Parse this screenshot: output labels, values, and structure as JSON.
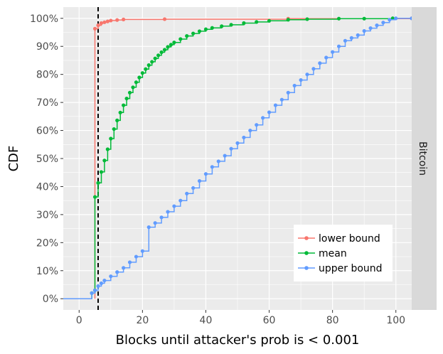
{
  "chart_data": {
    "type": "line",
    "facet_label": "Bitcoin",
    "xlabel": "Blocks until attacker's prob is < 0.001",
    "ylabel": "CDF",
    "xlim": [
      -5,
      105
    ],
    "ylim": [
      -0.04,
      1.04
    ],
    "x_ticks": [
      0,
      20,
      40,
      60,
      80,
      100
    ],
    "y_ticks": [
      0,
      0.1,
      0.2,
      0.3,
      0.4,
      0.5,
      0.6,
      0.7,
      0.8,
      0.9,
      1.0
    ],
    "y_tick_labels": [
      "0%",
      "10%",
      "20%",
      "30%",
      "40%",
      "50%",
      "60%",
      "70%",
      "80%",
      "90%",
      "100%"
    ],
    "vline_x": 6,
    "legend_position": "bottom-right",
    "colors": {
      "panel_bg": "#ebebeb",
      "grid_major": "#ffffff",
      "strip_bg": "#d9d9d9",
      "vline": "#000000"
    },
    "series": [
      {
        "name": "lower bound",
        "color": "#F8766D",
        "points": [
          [
            5,
            0.0
          ],
          [
            5,
            0.963
          ],
          [
            6,
            0.975
          ],
          [
            7,
            0.983
          ],
          [
            8,
            0.986
          ],
          [
            9,
            0.989
          ],
          [
            10,
            0.992
          ],
          [
            12,
            0.994
          ],
          [
            14,
            0.996
          ],
          [
            27,
            0.997
          ],
          [
            66,
            0.999
          ],
          [
            105,
            1.0
          ]
        ]
      },
      {
        "name": "mean",
        "color": "#00BA38",
        "points": [
          [
            4,
            0.0
          ],
          [
            4,
            0.02
          ],
          [
            5,
            0.03
          ],
          [
            5,
            0.363
          ],
          [
            6,
            0.413
          ],
          [
            7,
            0.452
          ],
          [
            8,
            0.493
          ],
          [
            9,
            0.533
          ],
          [
            10,
            0.571
          ],
          [
            11,
            0.605
          ],
          [
            12,
            0.636
          ],
          [
            13,
            0.664
          ],
          [
            14,
            0.69
          ],
          [
            15,
            0.714
          ],
          [
            16,
            0.735
          ],
          [
            17,
            0.754
          ],
          [
            18,
            0.772
          ],
          [
            19,
            0.789
          ],
          [
            20,
            0.805
          ],
          [
            21,
            0.819
          ],
          [
            22,
            0.833
          ],
          [
            23,
            0.845
          ],
          [
            24,
            0.857
          ],
          [
            25,
            0.868
          ],
          [
            26,
            0.879
          ],
          [
            27,
            0.888
          ],
          [
            28,
            0.898
          ],
          [
            29,
            0.906
          ],
          [
            30,
            0.914
          ],
          [
            32,
            0.926
          ],
          [
            34,
            0.937
          ],
          [
            36,
            0.946
          ],
          [
            38,
            0.954
          ],
          [
            40,
            0.961
          ],
          [
            42,
            0.966
          ],
          [
            45,
            0.972
          ],
          [
            48,
            0.977
          ],
          [
            52,
            0.983
          ],
          [
            56,
            0.987
          ],
          [
            60,
            0.991
          ],
          [
            66,
            0.995
          ],
          [
            72,
            0.997
          ],
          [
            82,
            0.999
          ],
          [
            90,
            0.999
          ],
          [
            99,
            1.0
          ]
        ]
      },
      {
        "name": "upper bound",
        "color": "#619CFF",
        "points": [
          [
            -5,
            0.0
          ],
          [
            4,
            0.0
          ],
          [
            4,
            0.02
          ],
          [
            5,
            0.03
          ],
          [
            6,
            0.045
          ],
          [
            7,
            0.055
          ],
          [
            8,
            0.065
          ],
          [
            10,
            0.08
          ],
          [
            12,
            0.095
          ],
          [
            14,
            0.11
          ],
          [
            16,
            0.13
          ],
          [
            18,
            0.15
          ],
          [
            20,
            0.17
          ],
          [
            22,
            0.255
          ],
          [
            24,
            0.27
          ],
          [
            26,
            0.29
          ],
          [
            28,
            0.31
          ],
          [
            30,
            0.33
          ],
          [
            32,
            0.35
          ],
          [
            34,
            0.375
          ],
          [
            36,
            0.395
          ],
          [
            38,
            0.42
          ],
          [
            40,
            0.445
          ],
          [
            42,
            0.47
          ],
          [
            44,
            0.49
          ],
          [
            46,
            0.51
          ],
          [
            48,
            0.535
          ],
          [
            50,
            0.555
          ],
          [
            52,
            0.575
          ],
          [
            54,
            0.6
          ],
          [
            56,
            0.62
          ],
          [
            58,
            0.645
          ],
          [
            60,
            0.665
          ],
          [
            62,
            0.69
          ],
          [
            64,
            0.71
          ],
          [
            66,
            0.735
          ],
          [
            68,
            0.76
          ],
          [
            70,
            0.78
          ],
          [
            72,
            0.8
          ],
          [
            74,
            0.82
          ],
          [
            76,
            0.84
          ],
          [
            78,
            0.86
          ],
          [
            80,
            0.88
          ],
          [
            82,
            0.9
          ],
          [
            84,
            0.92
          ],
          [
            86,
            0.93
          ],
          [
            88,
            0.94
          ],
          [
            90,
            0.955
          ],
          [
            92,
            0.965
          ],
          [
            94,
            0.975
          ],
          [
            96,
            0.985
          ],
          [
            98,
            0.995
          ],
          [
            100,
            1.0
          ],
          [
            105,
            1.0
          ]
        ]
      }
    ]
  }
}
